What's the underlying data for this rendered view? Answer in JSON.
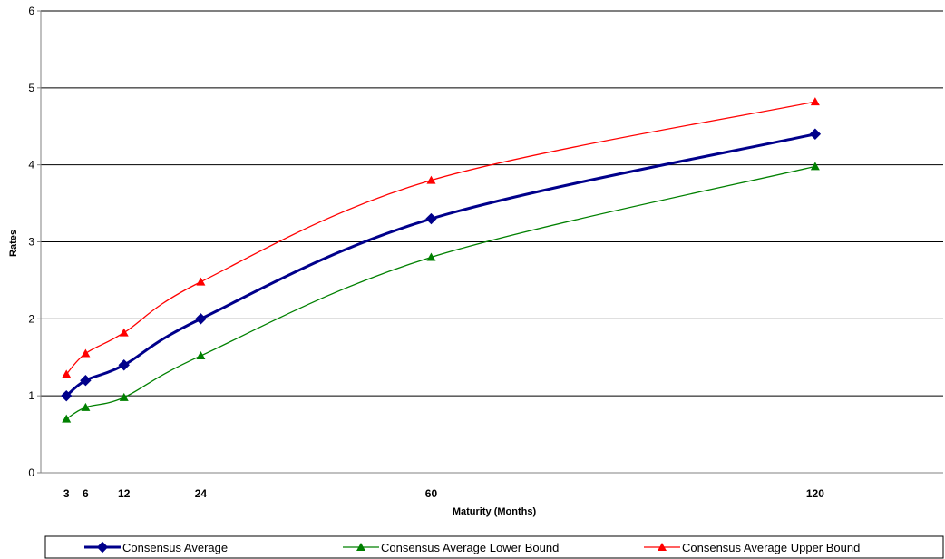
{
  "chart_data": {
    "type": "line",
    "title": "",
    "xlabel": "Maturity (Months)",
    "ylabel": "Rates",
    "x": [
      3,
      6,
      12,
      24,
      60,
      120
    ],
    "x_tick_labels": [
      "3",
      "6",
      "12",
      "24",
      "60",
      "120"
    ],
    "y_tick_labels": [
      "0",
      "1",
      "2",
      "3",
      "4",
      "5",
      "6"
    ],
    "xlim": [
      -1,
      140
    ],
    "ylim": [
      0,
      6
    ],
    "grid": "horizontal",
    "legend_position": "bottom",
    "series": [
      {
        "name": "Consensus Average",
        "color": "#00008b",
        "marker": "diamond",
        "values": [
          1.0,
          1.2,
          1.4,
          2.0,
          3.3,
          4.4
        ]
      },
      {
        "name": "Consensus Average Lower Bound",
        "color": "#008000",
        "marker": "triangle",
        "values": [
          0.7,
          0.85,
          0.98,
          1.52,
          2.8,
          3.98
        ]
      },
      {
        "name": "Consensus Average Upper Bound",
        "color": "#ff0000",
        "marker": "triangle",
        "values": [
          1.28,
          1.55,
          1.82,
          2.48,
          3.8,
          4.82
        ]
      }
    ]
  }
}
